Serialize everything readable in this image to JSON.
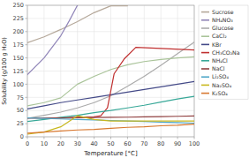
{
  "chart_data": {
    "type": "line",
    "xlabel": "Temperature [°C]",
    "ylabel": "Solubility (g/100 g H₂O)",
    "xlim": [
      0,
      100
    ],
    "ylim": [
      0,
      250
    ],
    "xticks": [
      0,
      10,
      20,
      30,
      40,
      50,
      60,
      70,
      80,
      90,
      100
    ],
    "yticks": [
      0,
      25,
      50,
      75,
      100,
      125,
      150,
      175,
      200,
      225,
      250
    ],
    "grid": true,
    "legend": "right",
    "series": [
      {
        "name": "Sucrose",
        "color": "#b5a89a",
        "x": [
          0,
          10,
          20,
          30,
          40,
          50,
          60
        ],
        "values": [
          179,
          190,
          204,
          219,
          236,
          249,
          249
        ]
      },
      {
        "name": "NH₄NO₃",
        "color": "#9085b8",
        "x": [
          0,
          10,
          20,
          25,
          30
        ],
        "values": [
          118,
          150,
          192,
          220,
          250
        ]
      },
      {
        "name": "Glucose",
        "color": "#ababab",
        "x": [
          0,
          10,
          20,
          30,
          40,
          50,
          60,
          70,
          80,
          90,
          100
        ],
        "values": [
          35,
          41,
          47,
          55,
          65,
          78,
          96,
          115,
          136,
          158,
          180
        ]
      },
      {
        "name": "CaCl₂",
        "color": "#aac49a",
        "x": [
          0,
          10,
          20,
          30,
          40,
          50,
          60,
          70,
          80,
          90,
          100
        ],
        "values": [
          59,
          65,
          74,
          100,
          115,
          128,
          137,
          143,
          147,
          150,
          152
        ]
      },
      {
        "name": "KBr",
        "color": "#444a88",
        "x": [
          0,
          10,
          20,
          30,
          40,
          50,
          60,
          70,
          80,
          90,
          100
        ],
        "values": [
          53,
          59,
          65,
          70,
          75,
          80,
          85,
          90,
          95,
          100,
          105
        ]
      },
      {
        "name": "CH₃CO₂Na",
        "color": "#c03030",
        "x": [
          0,
          10,
          20,
          30,
          40,
          44,
          48,
          52,
          58,
          65,
          80,
          100
        ],
        "values": [
          36,
          36,
          36,
          37,
          38,
          40,
          55,
          120,
          148,
          170,
          168,
          165
        ]
      },
      {
        "name": "NH₄Cl",
        "color": "#38a898",
        "x": [
          0,
          10,
          20,
          30,
          40,
          50,
          60,
          70,
          80,
          90,
          100
        ],
        "values": [
          29,
          33,
          37,
          41,
          46,
          50,
          55,
          60,
          66,
          72,
          77
        ]
      },
      {
        "name": "NaCl",
        "color": "#904040",
        "x": [
          0,
          10,
          20,
          30,
          40,
          50,
          60,
          70,
          80,
          90,
          100
        ],
        "values": [
          35.7,
          35.8,
          36.0,
          36.3,
          36.6,
          37.0,
          37.3,
          37.8,
          38.4,
          39.0,
          39.8
        ]
      },
      {
        "name": "Li₂SO₄",
        "color": "#52a8c8",
        "x": [
          0,
          10,
          20,
          30,
          40,
          50,
          60,
          70,
          80,
          90,
          100
        ],
        "values": [
          36,
          35,
          34,
          33,
          32,
          31,
          30,
          29,
          28,
          27,
          26
        ]
      },
      {
        "name": "Na₂SO₄",
        "color": "#c8b820",
        "x": [
          0,
          10,
          20,
          30,
          40,
          50,
          60,
          70,
          80,
          90,
          100
        ],
        "values": [
          5,
          9,
          19,
          40,
          33,
          30,
          30,
          30,
          30,
          30,
          30
        ]
      },
      {
        "name": "K₂SO₄",
        "color": "#d87830",
        "x": [
          0,
          10,
          20,
          30,
          40,
          50,
          60,
          70,
          80,
          90,
          100
        ],
        "values": [
          7,
          9,
          11,
          13,
          14,
          16,
          18,
          19,
          21,
          22,
          24
        ]
      }
    ]
  }
}
